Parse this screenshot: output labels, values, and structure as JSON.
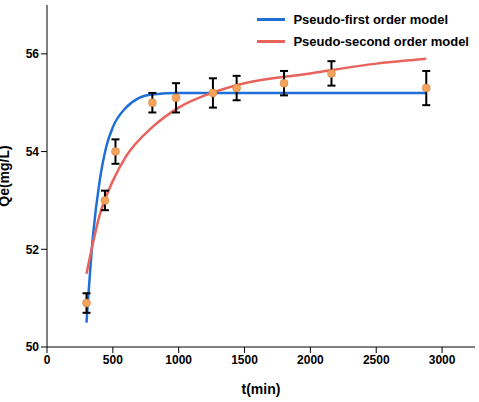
{
  "chart_data": {
    "type": "line",
    "x_label": "t(min)",
    "y_label": "Qe(mg/L)",
    "xlim": [
      0,
      3250
    ],
    "xticks": [
      0,
      500,
      1000,
      1500,
      2000,
      2500,
      3000
    ],
    "ylim": [
      50,
      57
    ],
    "yticks": [
      50,
      52,
      54,
      56
    ],
    "legend": "upper right",
    "series": [
      {
        "name": "Pseudo-first order model",
        "type": "line",
        "color": "#1f6fd6",
        "x": [
          300,
          350,
          400,
          450,
          500,
          600,
          700,
          800,
          1000,
          1500,
          2000,
          2500,
          2880
        ],
        "values": [
          50.5,
          52.3,
          53.4,
          54.1,
          54.5,
          54.9,
          55.1,
          55.17,
          55.2,
          55.2,
          55.2,
          55.2,
          55.2
        ]
      },
      {
        "name": "Pseudo-second order model",
        "type": "line",
        "color": "#e8635c",
        "x": [
          300,
          400,
          500,
          600,
          800,
          1000,
          1250,
          1500,
          2000,
          2500,
          2880
        ],
        "values": [
          51.5,
          52.7,
          53.4,
          53.9,
          54.5,
          54.9,
          55.2,
          55.4,
          55.6,
          55.8,
          55.9
        ]
      },
      {
        "type": "scatter",
        "color": "#f5a25d",
        "marker": "circle",
        "x": [
          300,
          440,
          520,
          800,
          980,
          1260,
          1440,
          1800,
          2160,
          2880
        ],
        "values": [
          50.9,
          53.0,
          54.0,
          55.0,
          55.1,
          55.2,
          55.3,
          55.4,
          55.6,
          55.3
        ],
        "error": [
          0.2,
          0.2,
          0.25,
          0.2,
          0.3,
          0.3,
          0.25,
          0.25,
          0.25,
          0.35
        ]
      }
    ]
  }
}
